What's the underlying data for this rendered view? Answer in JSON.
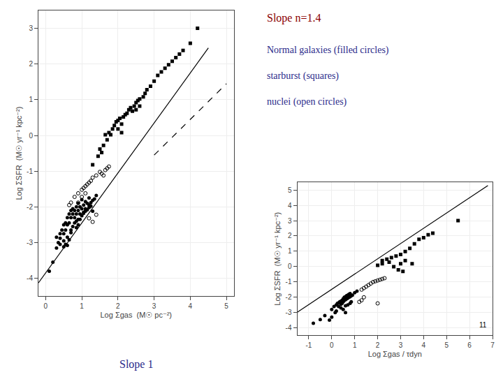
{
  "chart_data": [
    {
      "type": "scatter",
      "xlabel": "Log Σgas  (M☉ pc⁻²)",
      "ylabel": "Log ΣSFR  (M☉ yr⁻¹ kpc⁻²)",
      "xlim": [
        -0.2,
        5.2
      ],
      "ylim": [
        -4.5,
        3.5
      ],
      "xticks": [
        0,
        1,
        2,
        3,
        4,
        5
      ],
      "yticks": [
        -4,
        -3,
        -2,
        -1,
        0,
        1,
        2,
        3
      ],
      "series": [
        {
          "type": "line",
          "line_style": "solid",
          "color": "#000000",
          "x": [
            -0.2,
            4.5
          ],
          "values": [
            -4.13,
            2.45
          ]
        },
        {
          "type": "line",
          "line_style": "dashed",
          "color": "#000000",
          "x": [
            3.0,
            5.0
          ],
          "values": [
            -0.55,
            1.45
          ]
        },
        {
          "type": "scatter",
          "marker": "circle",
          "color": "#000000",
          "x": [
            0.1,
            0.2,
            0.3,
            0.35,
            0.4,
            0.45,
            0.5,
            0.5,
            0.55,
            0.55,
            0.6,
            0.6,
            0.65,
            0.65,
            0.7,
            0.7,
            0.75,
            0.75,
            0.8,
            0.8,
            0.85,
            0.85,
            0.9,
            0.9,
            0.9,
            0.95,
            0.95,
            1.0,
            1.0,
            1.05,
            1.05,
            1.1,
            1.1,
            1.15,
            1.2,
            1.2,
            1.25,
            1.3,
            1.35,
            1.4,
            0.3,
            0.4,
            0.5,
            0.6,
            0.7,
            0.75,
            0.8,
            0.85,
            0.9,
            0.95,
            1.0,
            1.05,
            1.1,
            0.55,
            0.65,
            1.15,
            1.2,
            1.25,
            0.85,
            0.7,
            0.4,
            0.5,
            0.6,
            1.3
          ],
          "values": [
            -3.8,
            -3.55,
            -2.85,
            -3.0,
            -2.75,
            -2.65,
            -2.5,
            -2.75,
            -2.45,
            -2.65,
            -2.5,
            -2.3,
            -2.2,
            -2.45,
            -2.3,
            -2.1,
            -2.2,
            -2.05,
            -2.1,
            -2.3,
            -2.2,
            -2.0,
            -1.9,
            -2.1,
            -2.35,
            -2.0,
            -2.2,
            -1.8,
            -2.05,
            -1.95,
            -2.15,
            -1.85,
            -2.05,
            -1.9,
            -1.75,
            -1.95,
            -1.88,
            -1.82,
            -1.78,
            -1.68,
            -3.15,
            -3.05,
            -2.95,
            -2.85,
            -2.65,
            -2.55,
            -2.45,
            -2.4,
            -2.5,
            -2.35,
            -2.25,
            -2.18,
            -2.12,
            -3.05,
            -2.92,
            -2.08,
            -2.02,
            -1.98,
            -2.58,
            -2.72,
            -2.88,
            -3.12,
            -3.08,
            -2.12
          ]
        },
        {
          "type": "scatter",
          "marker": "circle-open",
          "color": "#000000",
          "x": [
            0.9,
            1.0,
            1.05,
            1.1,
            1.15,
            1.2,
            1.25,
            1.3,
            1.4,
            1.5,
            1.55,
            1.6,
            1.65,
            1.7,
            0.8,
            0.7,
            0.65,
            1.1,
            1.0,
            0.9,
            1.75,
            1.2,
            1.3,
            1.4
          ],
          "values": [
            -1.62,
            -1.52,
            -1.47,
            -1.42,
            -1.37,
            -1.32,
            -1.27,
            -1.18,
            -1.12,
            -1.02,
            -1.07,
            -1.12,
            -0.97,
            -0.92,
            -1.72,
            -1.88,
            -1.95,
            -1.62,
            -1.72,
            -1.88,
            -0.87,
            -2.32,
            -2.42,
            -2.22
          ]
        },
        {
          "type": "scatter",
          "marker": "square",
          "color": "#000000",
          "x": [
            1.5,
            1.6,
            1.65,
            1.7,
            1.75,
            1.8,
            1.85,
            1.9,
            1.95,
            2.0,
            2.05,
            2.1,
            2.15,
            2.2,
            2.25,
            2.3,
            2.35,
            2.4,
            2.45,
            2.5,
            2.55,
            2.6,
            2.7,
            2.75,
            2.8,
            2.9,
            3.0,
            3.1,
            3.2,
            3.3,
            3.4,
            3.5,
            3.6,
            3.7,
            3.8,
            4.0,
            4.2,
            1.45,
            1.55,
            2.0,
            2.1,
            2.5,
            2.6,
            1.3
          ],
          "values": [
            -0.38,
            -0.28,
            0.02,
            -0.12,
            0.08,
            0.02,
            0.18,
            0.28,
            0.38,
            0.42,
            0.48,
            0.32,
            0.52,
            0.58,
            0.62,
            0.72,
            0.78,
            0.68,
            0.82,
            0.92,
            0.98,
            1.02,
            1.08,
            1.18,
            1.28,
            1.38,
            1.52,
            1.68,
            1.78,
            1.88,
            1.98,
            2.08,
            2.18,
            2.28,
            2.38,
            2.58,
            3.0,
            -0.58,
            -0.48,
            0.18,
            0.08,
            0.72,
            0.82,
            -0.82
          ]
        }
      ],
      "annotations": [
        {
          "text": "Slope n=1.4",
          "color": "#8b0000"
        },
        {
          "text": "Normal galaxies (filled circles)",
          "color": "#2b2b8b"
        },
        {
          "text": "starburst (squares)",
          "color": "#2b2b8b"
        },
        {
          "text": "nuclei (open circles)",
          "color": "#2b2b8b"
        },
        {
          "text": "Slope 1",
          "color": "#2b2b8b"
        }
      ]
    },
    {
      "type": "scatter",
      "xlabel": "Log Σgas / τdyn",
      "ylabel": "Log ΣSFR  (M☉ yr⁻¹ kpc⁻²)",
      "xlim": [
        -1.5,
        7.0
      ],
      "ylim": [
        -4.5,
        5.5
      ],
      "xticks": [
        -1,
        0,
        1,
        2,
        3,
        4,
        5,
        6,
        7
      ],
      "yticks": [
        -4,
        -3,
        -2,
        -1,
        0,
        1,
        2,
        3,
        4,
        5
      ],
      "series": [
        {
          "type": "line",
          "line_style": "solid",
          "color": "#000000",
          "x": [
            -1.5,
            6.8
          ],
          "values": [
            -3.0,
            5.3
          ]
        },
        {
          "type": "scatter",
          "marker": "circle",
          "color": "#000000",
          "x": [
            -0.8,
            -0.5,
            -0.3,
            0.0,
            0.1,
            0.2,
            0.25,
            0.3,
            0.35,
            0.4,
            0.4,
            0.45,
            0.45,
            0.5,
            0.5,
            0.55,
            0.55,
            0.6,
            0.6,
            0.65,
            0.65,
            0.7,
            0.7,
            0.75,
            0.75,
            0.8,
            0.8,
            0.85,
            0.9,
            1.0,
            1.1,
            0.3,
            0.4,
            0.5,
            0.6,
            0.2,
            0.15,
            0.0,
            -0.1,
            0.7,
            0.8,
            0.85,
            0.6
          ],
          "values": [
            -3.72,
            -3.48,
            -3.22,
            -2.82,
            -2.62,
            -2.52,
            -2.42,
            -2.38,
            -2.32,
            -2.28,
            -2.48,
            -2.22,
            -2.42,
            -2.12,
            -2.32,
            -2.02,
            -2.22,
            -1.98,
            -2.18,
            -1.92,
            -2.12,
            -1.88,
            -2.08,
            -1.82,
            -2.02,
            -1.78,
            -1.98,
            -1.92,
            -1.88,
            -1.72,
            -1.62,
            -2.62,
            -2.72,
            -2.82,
            -3.02,
            -2.92,
            -3.02,
            -3.32,
            -3.52,
            -2.52,
            -2.42,
            -2.32,
            -2.58
          ]
        },
        {
          "type": "scatter",
          "marker": "circle-open",
          "color": "#000000",
          "x": [
            1.5,
            1.6,
            1.7,
            1.8,
            1.9,
            2.0,
            2.1,
            2.2,
            2.3,
            1.4,
            1.3,
            1.2,
            1.3,
            1.4,
            2.0
          ],
          "values": [
            -1.32,
            -1.22,
            -1.12,
            -1.02,
            -0.97,
            -0.92,
            -0.87,
            -0.82,
            -0.77,
            -1.42,
            -1.52,
            -2.32,
            -2.22,
            -2.02,
            -2.42
          ]
        },
        {
          "type": "scatter",
          "marker": "square",
          "color": "#000000",
          "x": [
            2.2,
            2.4,
            2.6,
            2.8,
            3.0,
            3.2,
            3.4,
            3.6,
            3.8,
            4.0,
            4.2,
            4.4,
            5.5,
            2.0,
            2.2,
            2.5,
            2.7,
            3.0,
            3.2,
            2.9,
            3.1,
            3.5
          ],
          "values": [
            0.38,
            0.48,
            0.58,
            0.68,
            0.78,
            0.98,
            1.18,
            1.48,
            1.78,
            1.88,
            2.08,
            2.18,
            3.0,
            0.08,
            0.18,
            0.28,
            -0.02,
            0.18,
            0.38,
            -0.22,
            -0.32,
            0.18
          ]
        }
      ],
      "annotations": [
        {
          "text": "11",
          "color": "#000000"
        }
      ]
    }
  ]
}
